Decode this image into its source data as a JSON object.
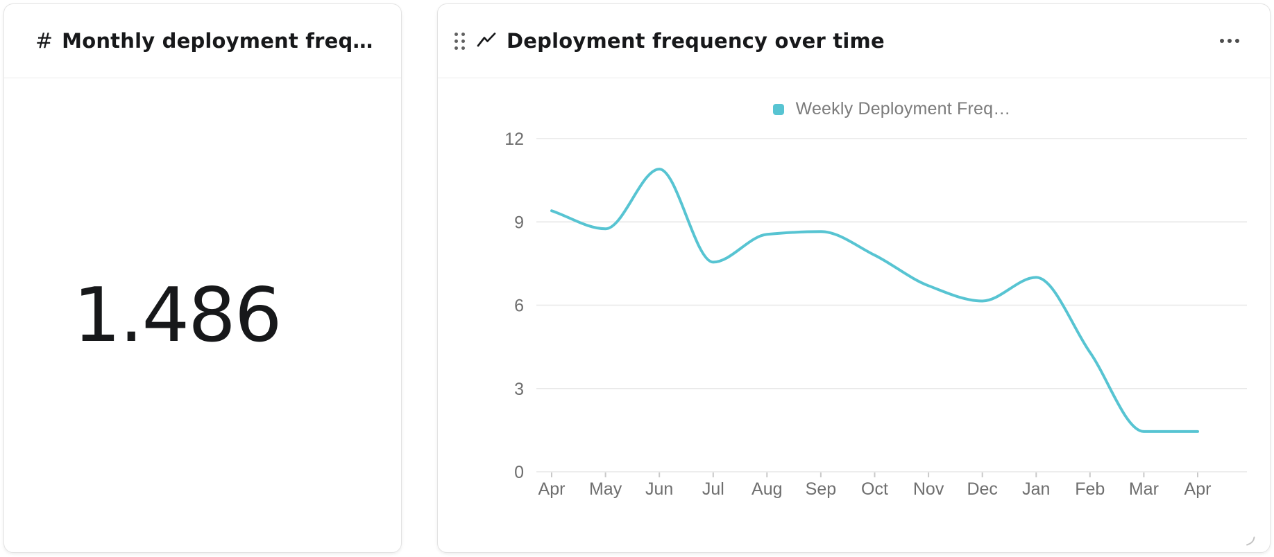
{
  "cards": {
    "metric": {
      "icon": "#",
      "title": "Monthly deployment frequen…",
      "value": "1.486"
    },
    "chart": {
      "title": "Deployment frequency over time",
      "legend_label": "Weekly Deployment Freq…"
    }
  },
  "chart_data": {
    "type": "line",
    "title": "Deployment frequency over time",
    "legend_entries": [
      "Weekly Deployment Freq…"
    ],
    "legend_position": "top",
    "categories": [
      "Apr",
      "May",
      "Jun",
      "Jul",
      "Aug",
      "Sep",
      "Oct",
      "Nov",
      "Dec",
      "Jan",
      "Feb",
      "Mar",
      "Apr"
    ],
    "series": [
      {
        "name": "Weekly Deployment Freq…",
        "values": [
          9.4,
          8.75,
          10.9,
          7.55,
          8.55,
          8.65,
          7.8,
          6.7,
          6.15,
          7.0,
          4.3,
          1.45,
          1.45
        ]
      }
    ],
    "ylim": [
      0,
      12
    ],
    "yticks": [
      0,
      3,
      6,
      9,
      12
    ],
    "grid": true,
    "smooth": true,
    "line_color": "#57c4d2"
  },
  "colors": {
    "accent_teal": "#57c4d2",
    "grid_line": "#e7e7e7",
    "tick_mark": "#c9c9c9",
    "axis_text": "#6e6e6e",
    "legend_text": "#7b7b7b",
    "title_text": "#17181a"
  }
}
